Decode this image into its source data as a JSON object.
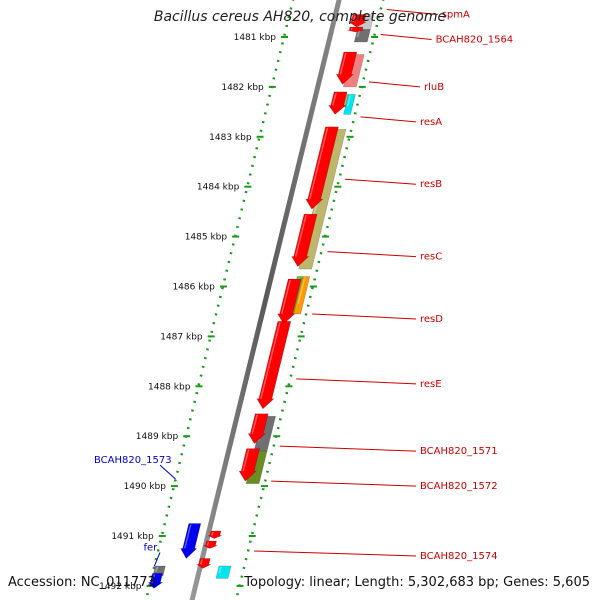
{
  "title": "Bacillus cereus AH820, complete genome",
  "accession": "Accession: NC_011773",
  "summary": "Topology: linear; Length: 5,302,683 bp; Genes: 5,605",
  "kbp_labels": [
    {
      "text": "1481 kbp",
      "kbp": 1481
    },
    {
      "text": "1482 kbp",
      "kbp": 1482
    },
    {
      "text": "1483 kbp",
      "kbp": 1483
    },
    {
      "text": "1484 kbp",
      "kbp": 1484
    },
    {
      "text": "1485 kbp",
      "kbp": 1485
    },
    {
      "text": "1486 kbp",
      "kbp": 1486
    },
    {
      "text": "1487 kbp",
      "kbp": 1487
    },
    {
      "text": "1488 kbp",
      "kbp": 1488
    },
    {
      "text": "1489 kbp",
      "kbp": 1489
    },
    {
      "text": "1490 kbp",
      "kbp": 1490
    },
    {
      "text": "1491 kbp",
      "kbp": 1491
    },
    {
      "text": "1492 kbp",
      "kbp": 1492
    }
  ],
  "forward_genes": [
    {
      "name": "spmA",
      "label_color": "#cc0000",
      "start": 1480.55,
      "end": 1480.8,
      "color": "#ff0000"
    },
    {
      "name": "",
      "start": 1480.8,
      "end": 1480.9,
      "color": "#ff0000"
    },
    {
      "name": "",
      "start": 1481.3,
      "end": 1481.95,
      "color": "#ff0000"
    },
    {
      "name": "",
      "start": 1482.1,
      "end": 1482.55,
      "color": "#ff0000"
    },
    {
      "name": "",
      "start": 1482.8,
      "end": 1484.45,
      "color": "#ff0000"
    },
    {
      "name": "",
      "start": 1484.55,
      "end": 1485.6,
      "color": "#ff0000"
    },
    {
      "name": "",
      "start": 1485.85,
      "end": 1486.75,
      "color": "#ff0000"
    },
    {
      "name": "",
      "start": 1486.7,
      "end": 1488.45,
      "color": "#ff0000"
    },
    {
      "name": "",
      "start": 1488.55,
      "end": 1489.15,
      "color": "#ff0000"
    },
    {
      "name": "",
      "start": 1489.25,
      "end": 1489.9,
      "color": "#ff0000"
    },
    {
      "name": "",
      "start": 1490.9,
      "end": 1491.05,
      "color": "#ff0000"
    },
    {
      "name": "",
      "start": 1491.1,
      "end": 1491.25,
      "color": "#ff0000"
    },
    {
      "name": "",
      "start": 1491.45,
      "end": 1491.65,
      "color": "#ff0000"
    },
    {
      "name": "",
      "start": 1490.75,
      "end": 1491.45,
      "color": "#0000ee"
    },
    {
      "name": "",
      "start": 1491.75,
      "end": 1492.05,
      "color": "#0000ee"
    }
  ],
  "cds_features": [
    {
      "start": 1480.55,
      "end": 1480.85,
      "color": "#c8c8c8"
    },
    {
      "start": 1480.85,
      "end": 1481.1,
      "color": "#707070"
    },
    {
      "start": 1481.35,
      "end": 1482.0,
      "color": "#f08080"
    },
    {
      "start": 1482.15,
      "end": 1482.4,
      "color": "#bdb76b"
    },
    {
      "start": 1482.15,
      "end": 1482.55,
      "color": "#00e5ee"
    },
    {
      "start": 1482.85,
      "end": 1485.65,
      "color": "#bdb76b"
    },
    {
      "start": 1485.8,
      "end": 1486.55,
      "color": "#33cc33"
    },
    {
      "start": 1485.8,
      "end": 1486.55,
      "color": "#ff9900"
    },
    {
      "start": 1488.6,
      "end": 1489.3,
      "color": "#707070"
    },
    {
      "start": 1489.3,
      "end": 1489.95,
      "color": "#6b8e23"
    },
    {
      "start": 1491.6,
      "end": 1491.8,
      "color": "#707070"
    },
    {
      "start": 1491.6,
      "end": 1491.85,
      "color": "#00e5ee"
    }
  ],
  "gene_labels": [
    {
      "text": "spmA",
      "color": "#cc0000",
      "side": "right",
      "kbp": 1480.45
    },
    {
      "text": "BCAH820_1564",
      "color": "#cc0000",
      "side": "right",
      "kbp": 1480.95
    },
    {
      "text": "rluB",
      "color": "#cc0000",
      "side": "right",
      "kbp": 1481.9
    },
    {
      "text": "resA",
      "color": "#cc0000",
      "side": "right",
      "kbp": 1482.6
    },
    {
      "text": "resB",
      "color": "#cc0000",
      "side": "right",
      "kbp": 1483.85
    },
    {
      "text": "resC",
      "color": "#cc0000",
      "side": "right",
      "kbp": 1485.3
    },
    {
      "text": "resD",
      "color": "#cc0000",
      "side": "right",
      "kbp": 1486.55
    },
    {
      "text": "resE",
      "color": "#cc0000",
      "side": "right",
      "kbp": 1487.85
    },
    {
      "text": "BCAH820_1571",
      "color": "#cc0000",
      "side": "right",
      "kbp": 1489.2
    },
    {
      "text": "BCAH820_1572",
      "color": "#cc0000",
      "side": "right",
      "kbp": 1489.9
    },
    {
      "text": "BCAH820_1574",
      "color": "#cc0000",
      "side": "right",
      "kbp": 1491.3
    },
    {
      "text": "BCAH820_1573",
      "color": "#0000cc",
      "side": "left",
      "kbp": 1489.7
    },
    {
      "text": "fer",
      "color": "#0000cc",
      "side": "left",
      "kbp": 1491.45
    }
  ]
}
